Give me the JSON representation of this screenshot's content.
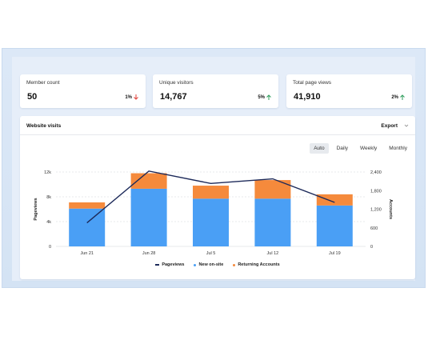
{
  "kpis": [
    {
      "label": "Member count",
      "value": "50",
      "delta": "1%",
      "direction": "down",
      "color": "#e0413a"
    },
    {
      "label": "Unique visitors",
      "value": "14,767",
      "delta": "5%",
      "direction": "up",
      "color": "#2f9e5c"
    },
    {
      "label": "Total page views",
      "value": "41,910",
      "delta": "2%",
      "direction": "up",
      "color": "#2f9e5c"
    }
  ],
  "visits": {
    "title": "Website visits",
    "export_label": "Export",
    "tabs": [
      {
        "label": "Auto",
        "active": true
      },
      {
        "label": "Daily",
        "active": false
      },
      {
        "label": "Weekly",
        "active": false
      },
      {
        "label": "Monthly",
        "active": false
      }
    ],
    "legend": [
      {
        "label": "Pageviews",
        "kind": "line",
        "color": "#1d2a5a"
      },
      {
        "label": "New on-site",
        "kind": "dot",
        "color": "#4a9ff5"
      },
      {
        "label": "Returning Accounts",
        "kind": "dot",
        "color": "#f58a3c"
      }
    ]
  },
  "chart_data": {
    "type": "bar",
    "categories": [
      "Jun 21",
      "Jun 28",
      "Jul 5",
      "Jul 12",
      "Jul 19"
    ],
    "ylabel": "Pageviews",
    "y2label": "Accounts",
    "ylim": [
      0,
      12000
    ],
    "y2lim": [
      0,
      2400
    ],
    "y_ticks": [
      "0",
      "4k",
      "8k",
      "12k"
    ],
    "y_ticks_vals": [
      0,
      4000,
      8000,
      12000
    ],
    "y2_ticks": [
      "0",
      "600",
      "1,200",
      "1,800",
      "2,400"
    ],
    "y2_ticks_vals": [
      0,
      600,
      1200,
      1800,
      2400
    ],
    "series": [
      {
        "name": "New on-site",
        "color": "#4a9ff5",
        "values": [
          6100,
          9300,
          7700,
          7700,
          6600
        ]
      },
      {
        "name": "Returning Accounts",
        "color": "#f58a3c",
        "values": [
          1000,
          2500,
          2100,
          3000,
          1800
        ]
      },
      {
        "name": "Pageviews",
        "color": "#1d2a5a",
        "axis": "right",
        "values": [
          760,
          2430,
          2030,
          2180,
          1420
        ]
      }
    ],
    "grid": true
  }
}
